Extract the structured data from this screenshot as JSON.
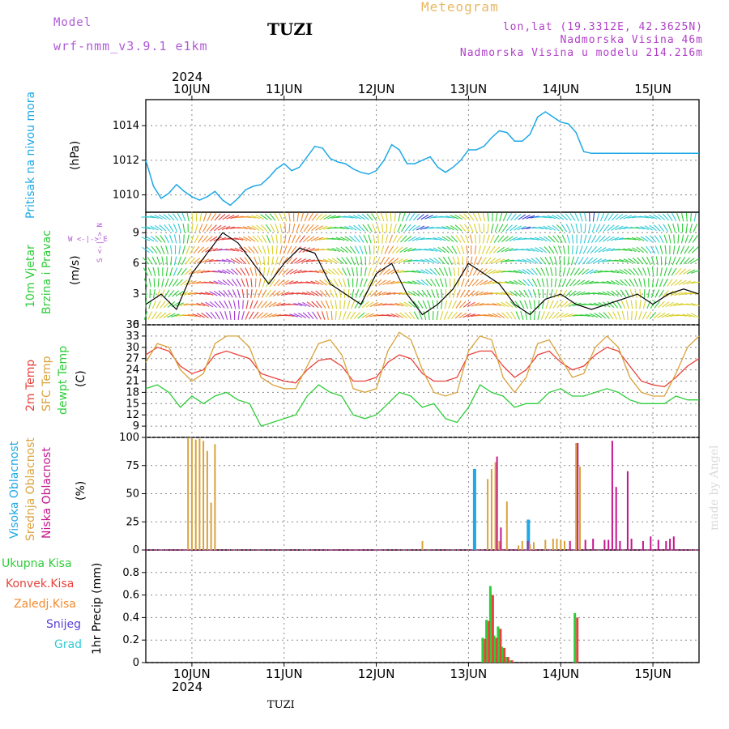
{
  "header": {
    "model_label": "Model",
    "model_name": "wrf-nmm_v3.9.1 e1km",
    "station": "TUZI",
    "meteogram": "Meteogram",
    "lonlat": "lon,lat (19.3312E, 42.3625N)",
    "elev": "Nadmorska Visina 46m",
    "elev_model": "Nadmorska Visina u modelu 214.216m",
    "year": "2024",
    "footer_station": "TUZI",
    "credit": "made by Angel"
  },
  "colors": {
    "pressure": "#1ea8e6",
    "temp2m": "#e8423c",
    "sfc": "#d9a33c",
    "dewpt": "#2fcd3a",
    "high_cloud": "#1ea8e6",
    "mid_cloud": "#d9a33c",
    "low_cloud": "#c4168c",
    "total_precip": "#2fcd3a",
    "conv_precip": "#e8423c",
    "frozen_precip": "#f28a2e",
    "snow": "#5a3fd6",
    "grad": "#2fcbd6",
    "model_label": "#b05ad6",
    "meteogram_title": "#e8b860",
    "info_right": "#b040c8"
  },
  "days": [
    "10JUN",
    "11JUN",
    "12JUN",
    "13JUN",
    "14JUN",
    "15JUN"
  ],
  "panels": {
    "pressure": {
      "label": "Pritisak na nivou mora",
      "unit": "(hPa)"
    },
    "wind": {
      "label1": "10m Vjetar",
      "label2": "Brzina i Pravac",
      "unit": "(m/s)",
      "compass": "W <-|-> E",
      "compass_v": "S <-|-> N"
    },
    "temp": {
      "label1": "2m Temp",
      "label2": "SFC Temp",
      "label3": "dewpt Temp",
      "unit": "(C)"
    },
    "cloud": {
      "label1": "Visoka Oblacnost",
      "label2": "Srednja Oblacnost",
      "label3": "Niska Oblacnost",
      "unit": "(%)"
    },
    "precip": {
      "l1": "Ukupna Kisa",
      "l2": "Konvek.Kisa",
      "l3": "Zaledj.Kisa",
      "l4": "Snijeg",
      "l5": "Grad",
      "unit": "1hr Precip (mm)"
    }
  },
  "chart_data": [
    {
      "type": "line",
      "name": "pressure",
      "x_unit": "hours from 2024-06-09 12:00 UTC",
      "xlim": [
        0,
        144
      ],
      "ylim": [
        1009,
        1015.5
      ],
      "yticks": [
        1010,
        1012,
        1014
      ],
      "series": [
        {
          "color_key": "pressure",
          "x": [
            0,
            2,
            4,
            6,
            8,
            10,
            12,
            14,
            16,
            18,
            20,
            22,
            24,
            26,
            28,
            30,
            32,
            34,
            36,
            38,
            40,
            42,
            44,
            46,
            48,
            50,
            52,
            54,
            56,
            58,
            60,
            62,
            64,
            66,
            68,
            70,
            72,
            74,
            76,
            78,
            80,
            82,
            84,
            86,
            88,
            90,
            92,
            94,
            96,
            98,
            100,
            102,
            104,
            106,
            108,
            110,
            112,
            114,
            116,
            118,
            120,
            122,
            124,
            126,
            128,
            130,
            132,
            134,
            136,
            138,
            140,
            142,
            144
          ],
          "y": [
            1012,
            1010.5,
            1009.8,
            1010.1,
            1010.6,
            1010.2,
            1009.9,
            1009.7,
            1009.9,
            1010.2,
            1009.7,
            1009.4,
            1009.8,
            1010.3,
            1010.5,
            1010.6,
            1011.0,
            1011.5,
            1011.8,
            1011.4,
            1011.6,
            1012.2,
            1012.8,
            1012.7,
            1012.1,
            1011.9,
            1011.8,
            1011.5,
            1011.3,
            1011.2,
            1011.4,
            1012.0,
            1012.9,
            1012.6,
            1011.8,
            1011.8,
            1012.0,
            1012.2,
            1011.6,
            1011.3,
            1011.6,
            1012.0,
            1012.6,
            1012.6,
            1012.8,
            1013.3,
            1013.7,
            1013.6,
            1013.1,
            1013.1,
            1013.5,
            1014.5,
            1014.8,
            1014.5,
            1014.2,
            1014.1,
            1013.6,
            1012.5,
            1012.4,
            1012.4,
            1012.4,
            1012.4,
            1012.4,
            1012.4,
            1012.4,
            1012.4,
            1012.4,
            1012.4,
            1012.4,
            1012.4,
            1012.4,
            1012.4,
            1012.4
          ]
        }
      ]
    },
    {
      "type": "line",
      "name": "wind_speed",
      "ylim": [
        0,
        11
      ],
      "yticks": [
        0,
        3,
        6,
        9
      ],
      "series": [
        {
          "color_key": "wind",
          "x": [
            0,
            4,
            8,
            12,
            16,
            20,
            24,
            28,
            32,
            36,
            40,
            44,
            48,
            52,
            56,
            60,
            64,
            68,
            72,
            76,
            80,
            84,
            88,
            92,
            96,
            100,
            104,
            108,
            112,
            116,
            120,
            124,
            128,
            132,
            136,
            140,
            144
          ],
          "y": [
            2,
            3,
            1.5,
            5,
            7,
            9,
            8,
            6,
            4,
            6,
            7.5,
            7,
            4,
            3,
            2,
            5,
            6,
            3,
            1,
            2,
            3.5,
            6,
            5,
            4,
            2,
            1,
            2.5,
            3,
            2,
            1.5,
            2,
            2.5,
            3,
            2,
            3,
            3.5,
            3
          ]
        }
      ]
    },
    {
      "type": "line",
      "name": "temperature",
      "ylim": [
        6,
        36
      ],
      "yticks": [
        9,
        12,
        15,
        18,
        21,
        24,
        27,
        30,
        33,
        36
      ],
      "series": [
        {
          "name": "2m Temp",
          "color_key": "temp2m",
          "x": [
            0,
            3,
            6,
            9,
            12,
            15,
            18,
            21,
            24,
            27,
            30,
            33,
            36,
            39,
            42,
            45,
            48,
            51,
            54,
            57,
            60,
            63,
            66,
            69,
            72,
            75,
            78,
            81,
            84,
            87,
            90,
            93,
            96,
            99,
            102,
            105,
            108,
            111,
            114,
            117,
            120,
            123,
            126,
            129,
            132,
            135,
            138,
            141,
            144
          ],
          "y": [
            28,
            30,
            29,
            25,
            23,
            24,
            28,
            29,
            28,
            27,
            23,
            22,
            21,
            20.5,
            24,
            26.5,
            27,
            25,
            21,
            21,
            22,
            26,
            28,
            27,
            23,
            21,
            21,
            22,
            28,
            29,
            29,
            25,
            22,
            24,
            28,
            29,
            26,
            24,
            25,
            28,
            30,
            29,
            25,
            21,
            20,
            19.5,
            22,
            25,
            27
          ]
        },
        {
          "name": "SFC Temp",
          "color_key": "sfc",
          "x": [
            0,
            3,
            6,
            9,
            12,
            15,
            18,
            21,
            24,
            27,
            30,
            33,
            36,
            39,
            42,
            45,
            48,
            51,
            54,
            57,
            60,
            63,
            66,
            69,
            72,
            75,
            78,
            81,
            84,
            87,
            90,
            93,
            96,
            99,
            102,
            105,
            108,
            111,
            114,
            117,
            120,
            123,
            126,
            129,
            132,
            135,
            138,
            141,
            144
          ],
          "y": [
            26,
            31,
            30,
            24,
            21,
            23,
            31,
            33,
            33,
            30,
            22,
            20,
            19,
            19,
            25,
            31,
            32,
            28,
            19,
            18,
            19,
            29,
            34,
            32,
            24,
            18,
            17,
            18,
            29,
            33,
            32,
            22,
            18,
            22,
            31,
            32,
            27,
            22,
            23,
            30,
            33,
            30,
            22,
            18,
            17,
            17,
            23,
            30,
            33
          ]
        },
        {
          "name": "dewpt Temp",
          "color_key": "dewpt",
          "x": [
            0,
            3,
            6,
            9,
            12,
            15,
            18,
            21,
            24,
            27,
            30,
            33,
            36,
            39,
            42,
            45,
            48,
            51,
            54,
            57,
            60,
            63,
            66,
            69,
            72,
            75,
            78,
            81,
            84,
            87,
            90,
            93,
            96,
            99,
            102,
            105,
            108,
            111,
            114,
            117,
            120,
            123,
            126,
            129,
            132,
            135,
            138,
            141,
            144
          ],
          "y": [
            19,
            20,
            18,
            14,
            17,
            15,
            17,
            18,
            16,
            15,
            9,
            10,
            11,
            12,
            17,
            20,
            18,
            17,
            12,
            11,
            12,
            15,
            18,
            17,
            14,
            15,
            11,
            10,
            14,
            20,
            18,
            17,
            14,
            15,
            15,
            18,
            19,
            17,
            17,
            18,
            19,
            18,
            16,
            15,
            15,
            15,
            17,
            16,
            16
          ]
        }
      ]
    },
    {
      "type": "bar",
      "name": "cloud_cover",
      "ylim": [
        0,
        100
      ],
      "yticks": [
        0,
        25,
        50,
        75,
        100
      ],
      "series": [
        {
          "name": "Visoka Oblacnost",
          "color_key": "high_cloud",
          "x": [
            86,
            100
          ],
          "values": [
            72,
            27
          ]
        },
        {
          "name": "Srednja Oblacnost",
          "color_key": "mid_cloud",
          "x": [
            11,
            12,
            13,
            14,
            15,
            16,
            17,
            18,
            72,
            89,
            90,
            91,
            92,
            94,
            97,
            98,
            100,
            101,
            104,
            106,
            107,
            108,
            109,
            112,
            113
          ],
          "values": [
            100,
            99,
            98,
            99,
            97,
            88,
            42,
            94,
            8,
            63,
            72,
            78,
            8,
            43,
            4,
            8,
            5,
            7,
            9,
            10,
            10,
            9,
            8,
            95,
            74
          ]
        },
        {
          "name": "Niska Oblacnost",
          "color_key": "low_cloud",
          "x": [
            91,
            92,
            99,
            110,
            112,
            114,
            116,
            119,
            120,
            121,
            122,
            123,
            125,
            126,
            129,
            131,
            133,
            135,
            136,
            137
          ],
          "values": [
            83,
            20,
            8,
            8,
            95,
            9,
            10,
            9,
            9,
            97,
            56,
            8,
            70,
            10,
            8,
            12,
            9,
            8,
            10,
            12
          ]
        }
      ]
    },
    {
      "type": "bar",
      "name": "precipitation",
      "ylim": [
        0,
        1
      ],
      "yticks": [
        0,
        0.2,
        0.4,
        0.6,
        0.8
      ],
      "series": [
        {
          "name": "Ukupna Kisa",
          "color_key": "total_precip",
          "x": [
            88,
            89,
            90,
            91,
            92,
            93,
            94,
            95
          ],
          "values": [
            0.22,
            0.38,
            0.68,
            0.24,
            0.32,
            0.14,
            0.05,
            0.02
          ]
        },
        {
          "name": "Konvek.Kisa",
          "color_key": "conv_precip",
          "x": [
            88,
            89,
            90,
            91,
            92,
            93,
            94,
            95,
            112
          ],
          "values": [
            0.21,
            0.37,
            0.6,
            0.22,
            0.3,
            0.13,
            0.05,
            0.02,
            0.4
          ]
        },
        {
          "name": "Ukupna Kisa (14JUN)",
          "color_key": "total_precip",
          "x": [
            112
          ],
          "values": [
            0.44
          ]
        }
      ]
    }
  ]
}
